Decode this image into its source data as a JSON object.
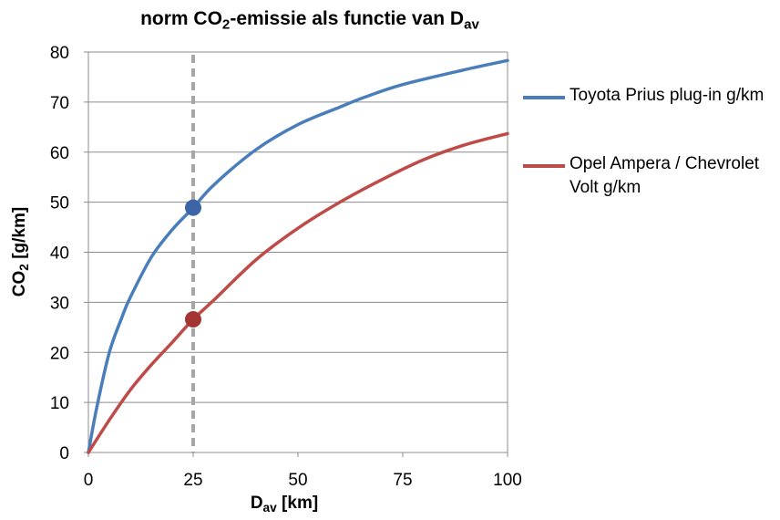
{
  "chart_data": {
    "type": "line",
    "title": {
      "main": "norm CO",
      "sub1": "2",
      "mid": "-emissie als functie van D",
      "sub2": "av"
    },
    "xlabel": {
      "main": "D",
      "sub": "av",
      "rest": " [km]"
    },
    "ylabel": {
      "main": "CO",
      "sub": "2",
      "rest": " [g/km]"
    },
    "xlim": [
      0,
      100
    ],
    "ylim": [
      0,
      80
    ],
    "xticks": [
      "0",
      "25",
      "50",
      "75",
      "100"
    ],
    "yticks": [
      "0",
      "10",
      "20",
      "30",
      "40",
      "50",
      "60",
      "70",
      "80"
    ],
    "grid": "horizontal",
    "legend_position": "right",
    "vertical_reference_line": {
      "x": 25,
      "style": "dashed",
      "color": "#a6a6a6"
    },
    "series": [
      {
        "name": "Toyota Prius plug-in g/km",
        "color": "#4a7ebb",
        "x": [
          0,
          2,
          5,
          8,
          10,
          15,
          20,
          25,
          30,
          40,
          50,
          60,
          66,
          75,
          90,
          100
        ],
        "y": [
          0,
          9,
          20,
          27,
          31,
          39,
          44.5,
          48.9,
          53.5,
          60.5,
          65.5,
          69,
          71,
          73.5,
          76.5,
          78.3
        ]
      },
      {
        "name": "Opel Ampera / Chevrolet Volt g/km",
        "color": "#be4b48",
        "x": [
          0,
          5,
          10,
          15,
          20,
          25,
          30,
          40,
          50,
          60,
          70,
          80,
          90,
          100
        ],
        "y": [
          0,
          6.5,
          12.5,
          17.5,
          22,
          26.6,
          30.5,
          38.5,
          44.8,
          50,
          54.5,
          58.5,
          61.5,
          63.7
        ]
      }
    ],
    "highlighted_points": [
      {
        "series": 0,
        "x": 25,
        "y": 48.9
      },
      {
        "series": 1,
        "x": 25,
        "y": 26.6
      }
    ]
  }
}
